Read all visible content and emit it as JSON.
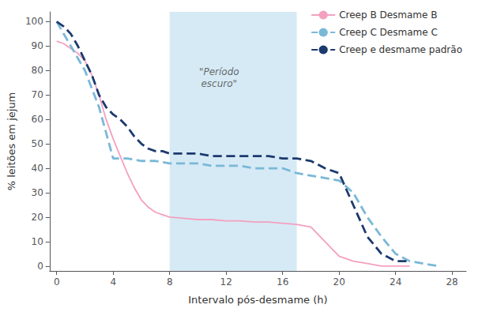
{
  "chart_data": {
    "type": "line",
    "xlabel": "Intervalo pós-desmame (h)",
    "ylabel": "% leitões em jejum",
    "xlim": [
      -0.5,
      29
    ],
    "ylim": [
      -2,
      104
    ],
    "xticks": [
      0,
      4,
      8,
      12,
      16,
      20,
      24,
      28
    ],
    "yticks": [
      0,
      10,
      20,
      30,
      40,
      50,
      60,
      70,
      80,
      90,
      100
    ],
    "grid": false,
    "legend": "upper right",
    "shaded_region": {
      "x": [
        8,
        17
      ],
      "color": "#d6eaf5"
    },
    "annotations": [
      {
        "text": "\"Período\nescuro\"",
        "x": 11.5,
        "y": 82
      }
    ],
    "series": [
      {
        "name": "Creep B Desmame B",
        "color": "#f4a0c0",
        "line_style": "solid",
        "x": [
          0,
          0.5,
          1,
          1.5,
          2,
          2.5,
          3,
          3.5,
          4,
          4.5,
          5,
          5.5,
          6,
          6.5,
          7,
          7.5,
          8,
          9,
          10,
          11,
          12,
          13,
          14,
          15,
          16,
          17,
          18,
          19,
          20,
          21,
          22,
          23,
          24,
          25
        ],
        "values": [
          92,
          91,
          89,
          87,
          84,
          78,
          70,
          60,
          52,
          45,
          38,
          32,
          27,
          24,
          22,
          21,
          20,
          19.5,
          19,
          19,
          18.5,
          18.5,
          18,
          18,
          17.5,
          17,
          16,
          10,
          4,
          2,
          1,
          0,
          0,
          0
        ]
      },
      {
        "name": "Creep C Desmame C",
        "color": "#7ab8d8",
        "line_style": "dashed",
        "x": [
          0,
          1,
          2,
          3,
          4,
          5,
          6,
          7,
          8,
          9,
          10,
          11,
          12,
          13,
          14,
          15,
          16,
          17,
          18,
          19,
          20,
          21,
          22,
          23,
          24,
          25,
          26,
          27
        ],
        "values": [
          100,
          90,
          80,
          65,
          44,
          44,
          43,
          43,
          42,
          42,
          42,
          41,
          41,
          41,
          40,
          40,
          40,
          38,
          37,
          36,
          35,
          30,
          20,
          12,
          5,
          2,
          1,
          0
        ]
      },
      {
        "name": "Creep e desmame padrão",
        "color": "#1c3a6e",
        "line_style": "dashed",
        "x": [
          0,
          0.5,
          1,
          1.5,
          2,
          2.5,
          3,
          3.5,
          4,
          4.5,
          5,
          5.5,
          6,
          6.5,
          7,
          7.5,
          8,
          9,
          10,
          11,
          12,
          13,
          14,
          15,
          16,
          17,
          18,
          19,
          20,
          21,
          22,
          23,
          24,
          25
        ],
        "values": [
          100,
          98,
          95,
          90,
          84,
          78,
          70,
          65,
          62,
          60,
          57,
          53,
          50,
          48,
          47,
          47,
          46,
          46,
          46,
          45,
          45,
          45,
          45,
          45,
          44,
          44,
          43,
          40,
          38,
          25,
          12,
          5,
          2,
          2
        ]
      }
    ]
  }
}
